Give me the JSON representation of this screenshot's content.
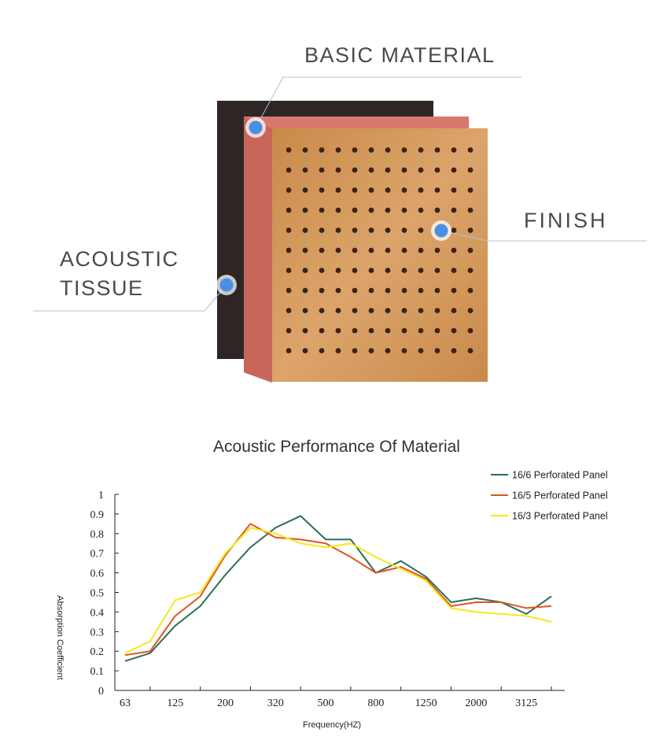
{
  "callouts": {
    "basic_material": "BASIC MATERIAL",
    "finish": "FINISH",
    "acoustic_tissue_line1": "ACOUSTIC",
    "acoustic_tissue_line2": "TISSUE"
  },
  "colors": {
    "callout_line": "#a9c4db",
    "callout_dot": "#4a90e2",
    "tissue": "#2e2624",
    "basic_material": "#d9796e",
    "finish_wood": "#d49a55"
  },
  "chart_data": {
    "type": "line",
    "title": "Acoustic Performance Of Material",
    "xlabel": "Frequency(HZ)",
    "ylabel": "Absorption Coefficient",
    "ylim": [
      0,
      1
    ],
    "yticks": [
      "0",
      "0.1",
      "0.2",
      "0.3",
      "0.4",
      "0.5",
      "0.6",
      "0.7",
      "0.8",
      "0.9",
      "1"
    ],
    "xtick_labels": [
      "63",
      "125",
      "200",
      "320",
      "500",
      "800",
      "1250",
      "2000",
      "3125"
    ],
    "grid": false,
    "legend_position": "top-right",
    "points_per_series": 18,
    "series": [
      {
        "name": "16/6 Perforated Panel",
        "color": "#2e6e58",
        "values": [
          0.15,
          0.19,
          0.33,
          0.43,
          0.59,
          0.73,
          0.83,
          0.89,
          0.77,
          0.77,
          0.6,
          0.66,
          0.58,
          0.45,
          0.47,
          0.45,
          0.39,
          0.48
        ]
      },
      {
        "name": "16/5 Perforated Panel",
        "color": "#e0541e",
        "values": [
          0.18,
          0.2,
          0.38,
          0.48,
          0.69,
          0.85,
          0.78,
          0.77,
          0.75,
          0.68,
          0.6,
          0.63,
          0.57,
          0.43,
          0.45,
          0.45,
          0.42,
          0.43
        ]
      },
      {
        "name": "16/3 Perforated Panel",
        "color": "#f3ea1a",
        "values": [
          0.19,
          0.25,
          0.46,
          0.5,
          0.7,
          0.83,
          0.8,
          0.75,
          0.73,
          0.75,
          0.68,
          0.62,
          0.56,
          0.42,
          0.4,
          0.39,
          0.38,
          0.35
        ]
      }
    ]
  }
}
